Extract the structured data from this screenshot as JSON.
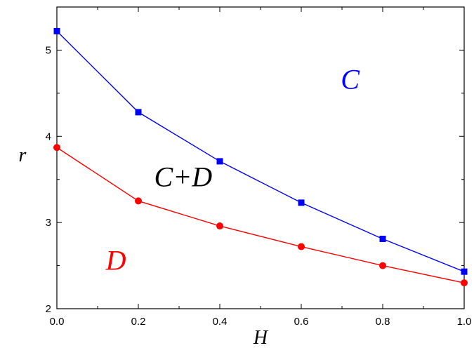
{
  "chart_data": {
    "type": "line",
    "xlabel": "H",
    "ylabel": "r",
    "xlim": [
      0.0,
      1.0
    ],
    "ylim": [
      2.0,
      5.5
    ],
    "x_ticks": [
      "0.0",
      "0.2",
      "0.4",
      "0.6",
      "0.8",
      "1.0"
    ],
    "y_ticks": [
      "2",
      "3",
      "4",
      "5"
    ],
    "grid": false,
    "series": [
      {
        "color": "#0000ff",
        "marker": "square",
        "x": [
          0.0,
          0.2,
          0.4,
          0.6,
          0.8,
          1.0
        ],
        "y": [
          5.22,
          4.28,
          3.71,
          3.23,
          2.81,
          2.43
        ]
      },
      {
        "color": "#ff0000",
        "marker": "circle",
        "x": [
          0.0,
          0.2,
          0.4,
          0.6,
          0.8,
          1.0
        ],
        "y": [
          3.87,
          3.25,
          2.96,
          2.72,
          2.5,
          2.3
        ]
      }
    ],
    "annotations": [
      {
        "text": "C",
        "x": 0.72,
        "y": 4.55,
        "color": "#0000ff"
      },
      {
        "text": "C+D",
        "x": 0.31,
        "y": 3.42,
        "color": "#000000"
      },
      {
        "text": "D",
        "x": 0.145,
        "y": 2.45,
        "color": "#ff0000"
      }
    ]
  }
}
